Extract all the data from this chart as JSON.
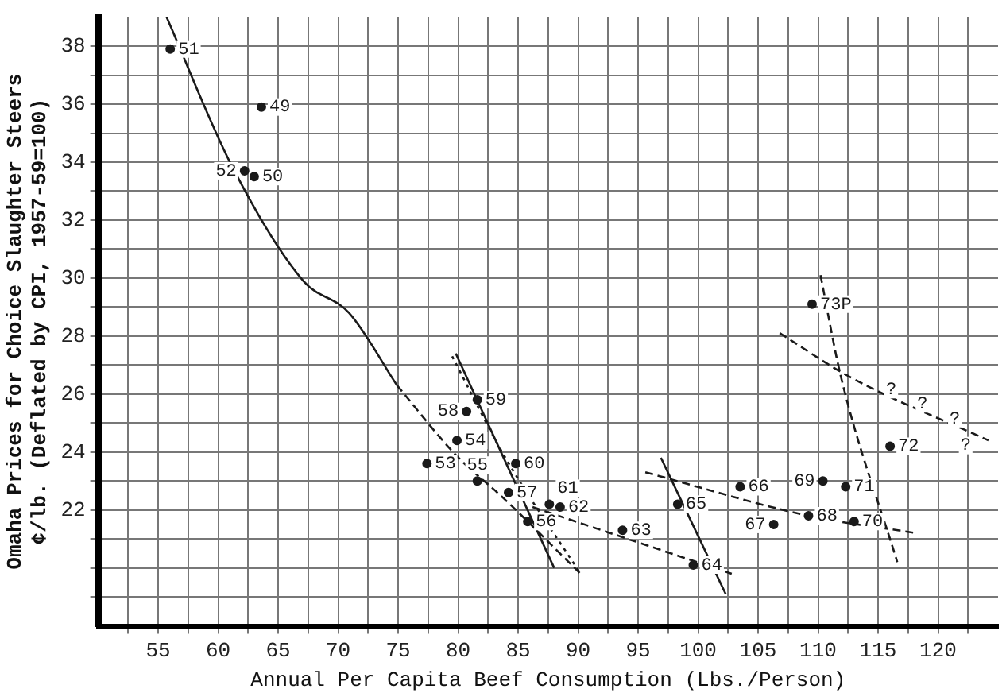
{
  "chart_data": {
    "type": "scatter",
    "xlabel": "Annual Per Capita Beef Consumption (Lbs./Person)",
    "ylabel": "Omaha Prices for Choice Slaughter Steers\n¢/lb. (Deflated by CPI, 1957-59=100)",
    "xlim": [
      50,
      125
    ],
    "xticks": [
      {
        "value": 52.5,
        "label": null
      },
      55,
      {
        "value": 57.5,
        "label": null
      },
      60,
      {
        "value": 62.5,
        "label": null
      },
      65,
      {
        "value": 67.5,
        "label": null
      },
      70,
      {
        "value": 72.5,
        "label": null
      },
      75,
      {
        "value": 77.5,
        "label": null
      },
      80,
      {
        "value": 82.5,
        "label": null
      },
      85,
      {
        "value": 87.5,
        "label": null
      },
      90,
      {
        "value": 92.5,
        "label": null
      },
      95,
      {
        "value": 97.5,
        "label": null
      },
      100,
      {
        "value": 102.5,
        "label": null
      },
      105,
      {
        "value": 107.5,
        "label": null
      },
      110,
      {
        "value": 112.5,
        "label": null
      },
      115,
      {
        "value": 117.5,
        "label": null
      },
      120,
      {
        "value": 122.5,
        "label": null
      }
    ],
    "ylim": [
      18,
      39
    ],
    "yticks": [
      {
        "value": 19,
        "label": null
      },
      {
        "value": 20,
        "label": null
      },
      {
        "value": 21,
        "label": null
      },
      22,
      {
        "value": 23,
        "label": null
      },
      24,
      {
        "value": 25,
        "label": null
      },
      26,
      {
        "value": 27,
        "label": null
      },
      28,
      {
        "value": 29,
        "label": null
      },
      30,
      {
        "value": 31,
        "label": null
      },
      32,
      {
        "value": 33,
        "label": null
      },
      34,
      {
        "value": 35,
        "label": null
      },
      36,
      {
        "value": 37,
        "label": null
      },
      38
    ],
    "grid": true,
    "legend": false,
    "marker": "circle",
    "series": [
      {
        "color": "#1a1a1a",
        "x": [
          63.6,
          63,
          56,
          62.2,
          77.4,
          79.9,
          81.6,
          85.8,
          84.2,
          80.7,
          81.6,
          84.8,
          87.6,
          88.5,
          93.7,
          99.6,
          98.3,
          103.5,
          106.3,
          109.2,
          110.4,
          113,
          112.3,
          116,
          109.5
        ],
        "values": [
          35.9,
          33.5,
          37.9,
          33.7,
          23.6,
          24.4,
          23,
          21.6,
          22.6,
          25.4,
          25.8,
          23.6,
          22.2,
          22.1,
          21.3,
          20.1,
          22.2,
          22.8,
          21.5,
          21.8,
          23,
          21.6,
          22.8,
          24.2,
          29.1
        ]
      },
      {
        "type": "line",
        "color": "#1a1a1a",
        "line_style": "solid",
        "marker": "none",
        "x": [
          55.7,
          61.1,
          67.1,
          70.9,
          74.9
        ],
        "values": [
          39,
          33.9,
          29.9,
          28.8,
          26.3
        ]
      },
      {
        "type": "line",
        "color": "#1a1a1a",
        "line_style": "dashed",
        "marker": "none",
        "x": [
          74.9,
          79.8,
          83.8,
          90.2
        ],
        "values": [
          26.3,
          23.9,
          22.4,
          19.8
        ]
      },
      {
        "type": "line",
        "color": "#1a1a1a",
        "line_style": "solid",
        "marker": "none",
        "x": [
          79.8,
          88
        ],
        "values": [
          27.4,
          20
        ]
      },
      {
        "type": "line",
        "color": "#1a1a1a",
        "line_style": "dotted",
        "marker": "none",
        "x": [
          79.5,
          83.8,
          90.2
        ],
        "values": [
          27.3,
          23.9,
          19.8
        ]
      },
      {
        "type": "line",
        "color": "#1a1a1a",
        "line_style": "dashed",
        "marker": "none",
        "x": [
          86.2,
          102.8
        ],
        "values": [
          22.1,
          19.8
        ]
      },
      {
        "type": "line",
        "color": "#1a1a1a",
        "line_style": "solid",
        "marker": "none",
        "x": [
          96.9,
          102.3
        ],
        "values": [
          23.8,
          19.1
        ]
      },
      {
        "type": "line",
        "color": "#1a1a1a",
        "line_style": "dashed",
        "marker": "none",
        "x": [
          95.6,
          109.2,
          118.2
        ],
        "values": [
          23.3,
          21.8,
          21.2
        ]
      },
      {
        "type": "line",
        "color": "#1a1a1a",
        "line_style": "dashed",
        "marker": "none",
        "x": [
          110.2,
          111.9,
          116.6
        ],
        "values": [
          30.1,
          26.6,
          20.2
        ]
      },
      {
        "type": "line",
        "color": "#1a1a1a",
        "line_style": "dashed",
        "marker": "none",
        "x": [
          106.8,
          112.6,
          124.2
        ],
        "values": [
          28.1,
          26.6,
          24.4
        ]
      }
    ],
    "annotations": [
      {
        "text": "49",
        "x": 63.6,
        "y": 35.9
      },
      {
        "text": "50",
        "x": 63,
        "y": 33.5
      },
      {
        "text": "51",
        "x": 56,
        "y": 37.9
      },
      {
        "text": "52",
        "x": 62.2,
        "y": 33.7
      },
      {
        "text": "53",
        "x": 77.4,
        "y": 23.6
      },
      {
        "text": "54",
        "x": 79.9,
        "y": 24.4
      },
      {
        "text": "55",
        "x": 81.6,
        "y": 23
      },
      {
        "text": "56",
        "x": 85.8,
        "y": 21.6
      },
      {
        "text": "57",
        "x": 84.2,
        "y": 22.6
      },
      {
        "text": "58",
        "x": 80.7,
        "y": 25.4
      },
      {
        "text": "59",
        "x": 81.6,
        "y": 25.8
      },
      {
        "text": "60",
        "x": 84.8,
        "y": 23.6
      },
      {
        "text": "61",
        "x": 87.6,
        "y": 22.2
      },
      {
        "text": "62",
        "x": 88.5,
        "y": 22.1
      },
      {
        "text": "63",
        "x": 93.7,
        "y": 21.3
      },
      {
        "text": "64",
        "x": 99.6,
        "y": 20.1
      },
      {
        "text": "65",
        "x": 98.3,
        "y": 22.2
      },
      {
        "text": "66",
        "x": 103.5,
        "y": 22.8
      },
      {
        "text": "67",
        "x": 106.3,
        "y": 21.5
      },
      {
        "text": "68",
        "x": 109.2,
        "y": 21.8
      },
      {
        "text": "69",
        "x": 110.4,
        "y": 23
      },
      {
        "text": "70",
        "x": 113,
        "y": 21.6
      },
      {
        "text": "71",
        "x": 112.3,
        "y": 22.8
      },
      {
        "text": "72",
        "x": 116,
        "y": 24.2
      },
      {
        "text": "73P",
        "x": 109.5,
        "y": 29.1
      },
      {
        "text": "?",
        "x": 115,
        "y": 26.15
      },
      {
        "text": "?",
        "x": 117.6,
        "y": 25.66
      },
      {
        "text": "?",
        "x": 120.3,
        "y": 25.15
      },
      {
        "text": "?",
        "x": 122.3,
        "y": 24.77
      }
    ]
  }
}
